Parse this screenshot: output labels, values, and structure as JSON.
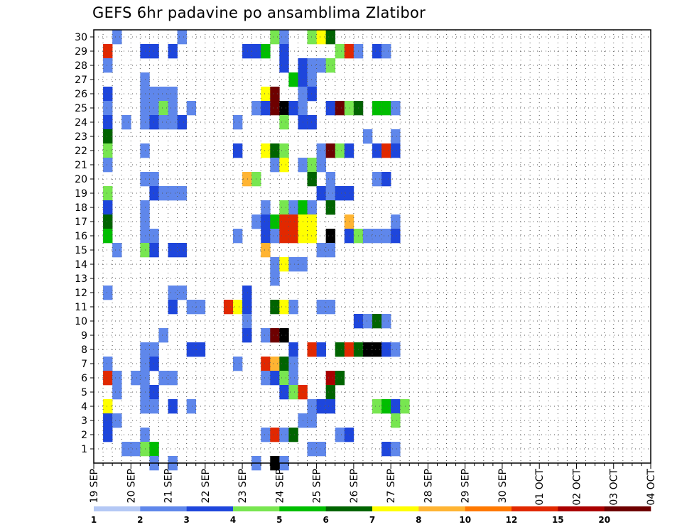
{
  "chart_data": {
    "type": "heatmap",
    "title": "GEFS 6hr padavine po ansamblima Zlatibor",
    "y_categories": [
      "1",
      "2",
      "3",
      "4",
      "5",
      "6",
      "7",
      "8",
      "9",
      "10",
      "11",
      "12",
      "13",
      "14",
      "15",
      "16",
      "17",
      "18",
      "19",
      "20",
      "21",
      "22",
      "23",
      "24",
      "25",
      "26",
      "27",
      "28",
      "29",
      "30"
    ],
    "x_tick_labels": [
      "19 SEP",
      "20 SEP",
      "21 SEP",
      "22 SEP",
      "23 SEP",
      "24 SEP",
      "25 SEP",
      "26 SEP",
      "27 SEP",
      "28 SEP",
      "29 SEP",
      "30 SEP",
      "01 OCT",
      "02 OCT",
      "03 OCT",
      "04 OCT"
    ],
    "steps_per_day": 4,
    "grid": true,
    "colorbar": {
      "position": "bottom",
      "labels": [
        "1",
        "2",
        "3",
        "4",
        "5",
        "6",
        "7",
        "8",
        "10",
        "12",
        "15",
        "20"
      ],
      "colors": [
        "#b4c8f5",
        "#5f87eb",
        "#1e46dc",
        "#78e650",
        "#00be00",
        "#006400",
        "#ffff00",
        "#ffb432",
        "#ff7800",
        "#e12800",
        "#aa0000",
        "#6e0000"
      ]
    },
    "cells": [
      [
        30,
        2,
        1
      ],
      [
        30,
        9,
        1
      ],
      [
        30,
        19,
        3
      ],
      [
        30,
        20,
        1
      ],
      [
        30,
        23,
        3
      ],
      [
        30,
        24,
        6
      ],
      [
        30,
        25,
        5
      ],
      [
        29,
        1,
        9
      ],
      [
        29,
        5,
        2
      ],
      [
        29,
        6,
        2
      ],
      [
        29,
        8,
        2
      ],
      [
        29,
        16,
        2
      ],
      [
        29,
        17,
        2
      ],
      [
        29,
        18,
        4
      ],
      [
        29,
        20,
        2
      ],
      [
        29,
        26,
        3
      ],
      [
        29,
        27,
        9
      ],
      [
        29,
        28,
        1
      ],
      [
        29,
        30,
        2
      ],
      [
        29,
        31,
        1
      ],
      [
        28,
        1,
        1
      ],
      [
        28,
        20,
        2
      ],
      [
        28,
        22,
        2
      ],
      [
        28,
        23,
        1
      ],
      [
        28,
        24,
        1
      ],
      [
        28,
        25,
        3
      ],
      [
        27,
        5,
        1
      ],
      [
        27,
        21,
        4
      ],
      [
        27,
        22,
        2
      ],
      [
        27,
        23,
        1
      ],
      [
        26,
        1,
        2
      ],
      [
        26,
        5,
        1
      ],
      [
        26,
        6,
        1
      ],
      [
        26,
        7,
        1
      ],
      [
        26,
        8,
        1
      ],
      [
        26,
        18,
        6
      ],
      [
        26,
        19,
        11
      ],
      [
        26,
        22,
        1
      ],
      [
        26,
        23,
        2
      ],
      [
        25,
        1,
        1
      ],
      [
        25,
        5,
        1
      ],
      [
        25,
        6,
        1
      ],
      [
        25,
        7,
        3
      ],
      [
        25,
        8,
        1
      ],
      [
        25,
        10,
        1
      ],
      [
        25,
        17,
        1
      ],
      [
        25,
        18,
        2
      ],
      [
        25,
        19,
        11
      ],
      [
        25,
        20,
        12
      ],
      [
        25,
        21,
        2
      ],
      [
        25,
        22,
        1
      ],
      [
        25,
        25,
        2
      ],
      [
        25,
        26,
        11
      ],
      [
        25,
        27,
        3
      ],
      [
        25,
        28,
        5
      ],
      [
        25,
        30,
        4
      ],
      [
        25,
        31,
        4
      ],
      [
        25,
        32,
        1
      ],
      [
        24,
        1,
        2
      ],
      [
        24,
        3,
        1
      ],
      [
        24,
        5,
        1
      ],
      [
        24,
        6,
        2
      ],
      [
        24,
        7,
        1
      ],
      [
        24,
        8,
        1
      ],
      [
        24,
        9,
        2
      ],
      [
        24,
        15,
        1
      ],
      [
        24,
        20,
        3
      ],
      [
        24,
        22,
        2
      ],
      [
        24,
        23,
        2
      ],
      [
        23,
        1,
        5
      ],
      [
        23,
        29,
        1
      ],
      [
        23,
        32,
        1
      ],
      [
        22,
        1,
        3
      ],
      [
        22,
        5,
        1
      ],
      [
        22,
        15,
        2
      ],
      [
        22,
        18,
        6
      ],
      [
        22,
        19,
        5
      ],
      [
        22,
        20,
        3
      ],
      [
        22,
        24,
        1
      ],
      [
        22,
        25,
        11
      ],
      [
        22,
        26,
        3
      ],
      [
        22,
        27,
        2
      ],
      [
        22,
        30,
        2
      ],
      [
        22,
        31,
        9
      ],
      [
        22,
        32,
        2
      ],
      [
        21,
        1,
        1
      ],
      [
        21,
        19,
        1
      ],
      [
        21,
        20,
        6
      ],
      [
        21,
        22,
        1
      ],
      [
        21,
        23,
        3
      ],
      [
        21,
        24,
        1
      ],
      [
        20,
        5,
        1
      ],
      [
        20,
        6,
        1
      ],
      [
        20,
        16,
        7
      ],
      [
        20,
        17,
        3
      ],
      [
        20,
        23,
        5
      ],
      [
        20,
        25,
        1
      ],
      [
        20,
        30,
        1
      ],
      [
        20,
        31,
        2
      ],
      [
        19,
        1,
        3
      ],
      [
        19,
        6,
        2
      ],
      [
        19,
        7,
        1
      ],
      [
        19,
        8,
        1
      ],
      [
        19,
        9,
        1
      ],
      [
        19,
        24,
        2
      ],
      [
        19,
        25,
        1
      ],
      [
        19,
        26,
        2
      ],
      [
        19,
        27,
        2
      ],
      [
        18,
        1,
        2
      ],
      [
        18,
        5,
        1
      ],
      [
        18,
        18,
        1
      ],
      [
        18,
        20,
        3
      ],
      [
        18,
        21,
        1
      ],
      [
        18,
        22,
        4
      ],
      [
        18,
        23,
        1
      ],
      [
        18,
        25,
        5
      ],
      [
        17,
        1,
        5
      ],
      [
        17,
        5,
        1
      ],
      [
        17,
        17,
        1
      ],
      [
        17,
        18,
        2
      ],
      [
        17,
        19,
        4
      ],
      [
        17,
        20,
        9
      ],
      [
        17,
        21,
        9
      ],
      [
        17,
        22,
        6
      ],
      [
        17,
        23,
        6
      ],
      [
        17,
        27,
        7
      ],
      [
        17,
        32,
        1
      ],
      [
        16,
        1,
        4
      ],
      [
        16,
        5,
        1
      ],
      [
        16,
        6,
        1
      ],
      [
        16,
        15,
        1
      ],
      [
        16,
        18,
        2
      ],
      [
        16,
        19,
        1
      ],
      [
        16,
        20,
        9
      ],
      [
        16,
        21,
        9
      ],
      [
        16,
        22,
        6
      ],
      [
        16,
        23,
        6
      ],
      [
        16,
        25,
        12
      ],
      [
        16,
        27,
        2
      ],
      [
        16,
        28,
        3
      ],
      [
        16,
        29,
        1
      ],
      [
        16,
        30,
        1
      ],
      [
        16,
        31,
        1
      ],
      [
        16,
        32,
        2
      ],
      [
        15,
        2,
        1
      ],
      [
        15,
        5,
        3
      ],
      [
        15,
        6,
        2
      ],
      [
        15,
        8,
        2
      ],
      [
        15,
        9,
        2
      ],
      [
        15,
        18,
        7
      ],
      [
        15,
        24,
        1
      ],
      [
        15,
        25,
        1
      ],
      [
        14,
        19,
        1
      ],
      [
        14,
        20,
        6
      ],
      [
        14,
        21,
        1
      ],
      [
        14,
        22,
        1
      ],
      [
        13,
        19,
        1
      ],
      [
        12,
        1,
        1
      ],
      [
        12,
        8,
        1
      ],
      [
        12,
        9,
        1
      ],
      [
        12,
        16,
        2
      ],
      [
        11,
        8,
        2
      ],
      [
        11,
        10,
        1
      ],
      [
        11,
        11,
        1
      ],
      [
        11,
        14,
        9
      ],
      [
        11,
        15,
        6
      ],
      [
        11,
        16,
        2
      ],
      [
        11,
        19,
        5
      ],
      [
        11,
        20,
        6
      ],
      [
        11,
        21,
        1
      ],
      [
        11,
        24,
        1
      ],
      [
        11,
        25,
        1
      ],
      [
        10,
        16,
        1
      ],
      [
        10,
        28,
        2
      ],
      [
        10,
        29,
        1
      ],
      [
        10,
        30,
        5
      ],
      [
        10,
        31,
        1
      ],
      [
        9,
        7,
        1
      ],
      [
        9,
        16,
        2
      ],
      [
        9,
        18,
        1
      ],
      [
        9,
        19,
        11
      ],
      [
        9,
        20,
        12
      ],
      [
        8,
        5,
        1
      ],
      [
        8,
        6,
        1
      ],
      [
        8,
        10,
        2
      ],
      [
        8,
        11,
        2
      ],
      [
        8,
        21,
        2
      ],
      [
        8,
        23,
        9
      ],
      [
        8,
        24,
        2
      ],
      [
        8,
        26,
        5
      ],
      [
        8,
        27,
        9
      ],
      [
        8,
        28,
        5
      ],
      [
        8,
        29,
        12
      ],
      [
        8,
        30,
        12
      ],
      [
        8,
        31,
        2
      ],
      [
        8,
        32,
        1
      ],
      [
        7,
        1,
        1
      ],
      [
        7,
        5,
        1
      ],
      [
        7,
        6,
        2
      ],
      [
        7,
        15,
        1
      ],
      [
        7,
        18,
        9
      ],
      [
        7,
        19,
        7
      ],
      [
        7,
        20,
        5
      ],
      [
        7,
        21,
        1
      ],
      [
        6,
        1,
        9
      ],
      [
        6,
        2,
        1
      ],
      [
        6,
        4,
        1
      ],
      [
        6,
        5,
        1
      ],
      [
        6,
        7,
        1
      ],
      [
        6,
        8,
        1
      ],
      [
        6,
        18,
        1
      ],
      [
        6,
        19,
        2
      ],
      [
        6,
        20,
        3
      ],
      [
        6,
        21,
        1
      ],
      [
        6,
        25,
        10
      ],
      [
        6,
        26,
        5
      ],
      [
        5,
        2,
        1
      ],
      [
        5,
        5,
        1
      ],
      [
        5,
        6,
        2
      ],
      [
        5,
        20,
        2
      ],
      [
        5,
        21,
        3
      ],
      [
        5,
        22,
        9
      ],
      [
        5,
        25,
        5
      ],
      [
        4,
        1,
        6
      ],
      [
        4,
        5,
        1
      ],
      [
        4,
        6,
        1
      ],
      [
        4,
        8,
        2
      ],
      [
        4,
        10,
        1
      ],
      [
        4,
        23,
        1
      ],
      [
        4,
        24,
        2
      ],
      [
        4,
        25,
        2
      ],
      [
        4,
        30,
        3
      ],
      [
        4,
        31,
        4
      ],
      [
        4,
        32,
        2
      ],
      [
        4,
        33,
        3
      ],
      [
        3,
        1,
        2
      ],
      [
        3,
        2,
        1
      ],
      [
        3,
        22,
        1
      ],
      [
        3,
        23,
        1
      ],
      [
        3,
        32,
        3
      ],
      [
        2,
        1,
        2
      ],
      [
        2,
        5,
        1
      ],
      [
        2,
        18,
        1
      ],
      [
        2,
        19,
        9
      ],
      [
        2,
        20,
        1
      ],
      [
        2,
        21,
        5
      ],
      [
        2,
        26,
        1
      ],
      [
        2,
        27,
        2
      ],
      [
        1,
        3,
        1
      ],
      [
        1,
        4,
        1
      ],
      [
        1,
        5,
        3
      ],
      [
        1,
        6,
        4
      ],
      [
        1,
        23,
        1
      ],
      [
        1,
        24,
        1
      ],
      [
        1,
        31,
        2
      ],
      [
        1,
        32,
        1
      ],
      [
        0,
        6,
        1
      ],
      [
        0,
        8,
        1
      ],
      [
        0,
        17,
        1
      ],
      [
        0,
        19,
        12
      ],
      [
        0,
        20,
        1
      ]
    ]
  }
}
